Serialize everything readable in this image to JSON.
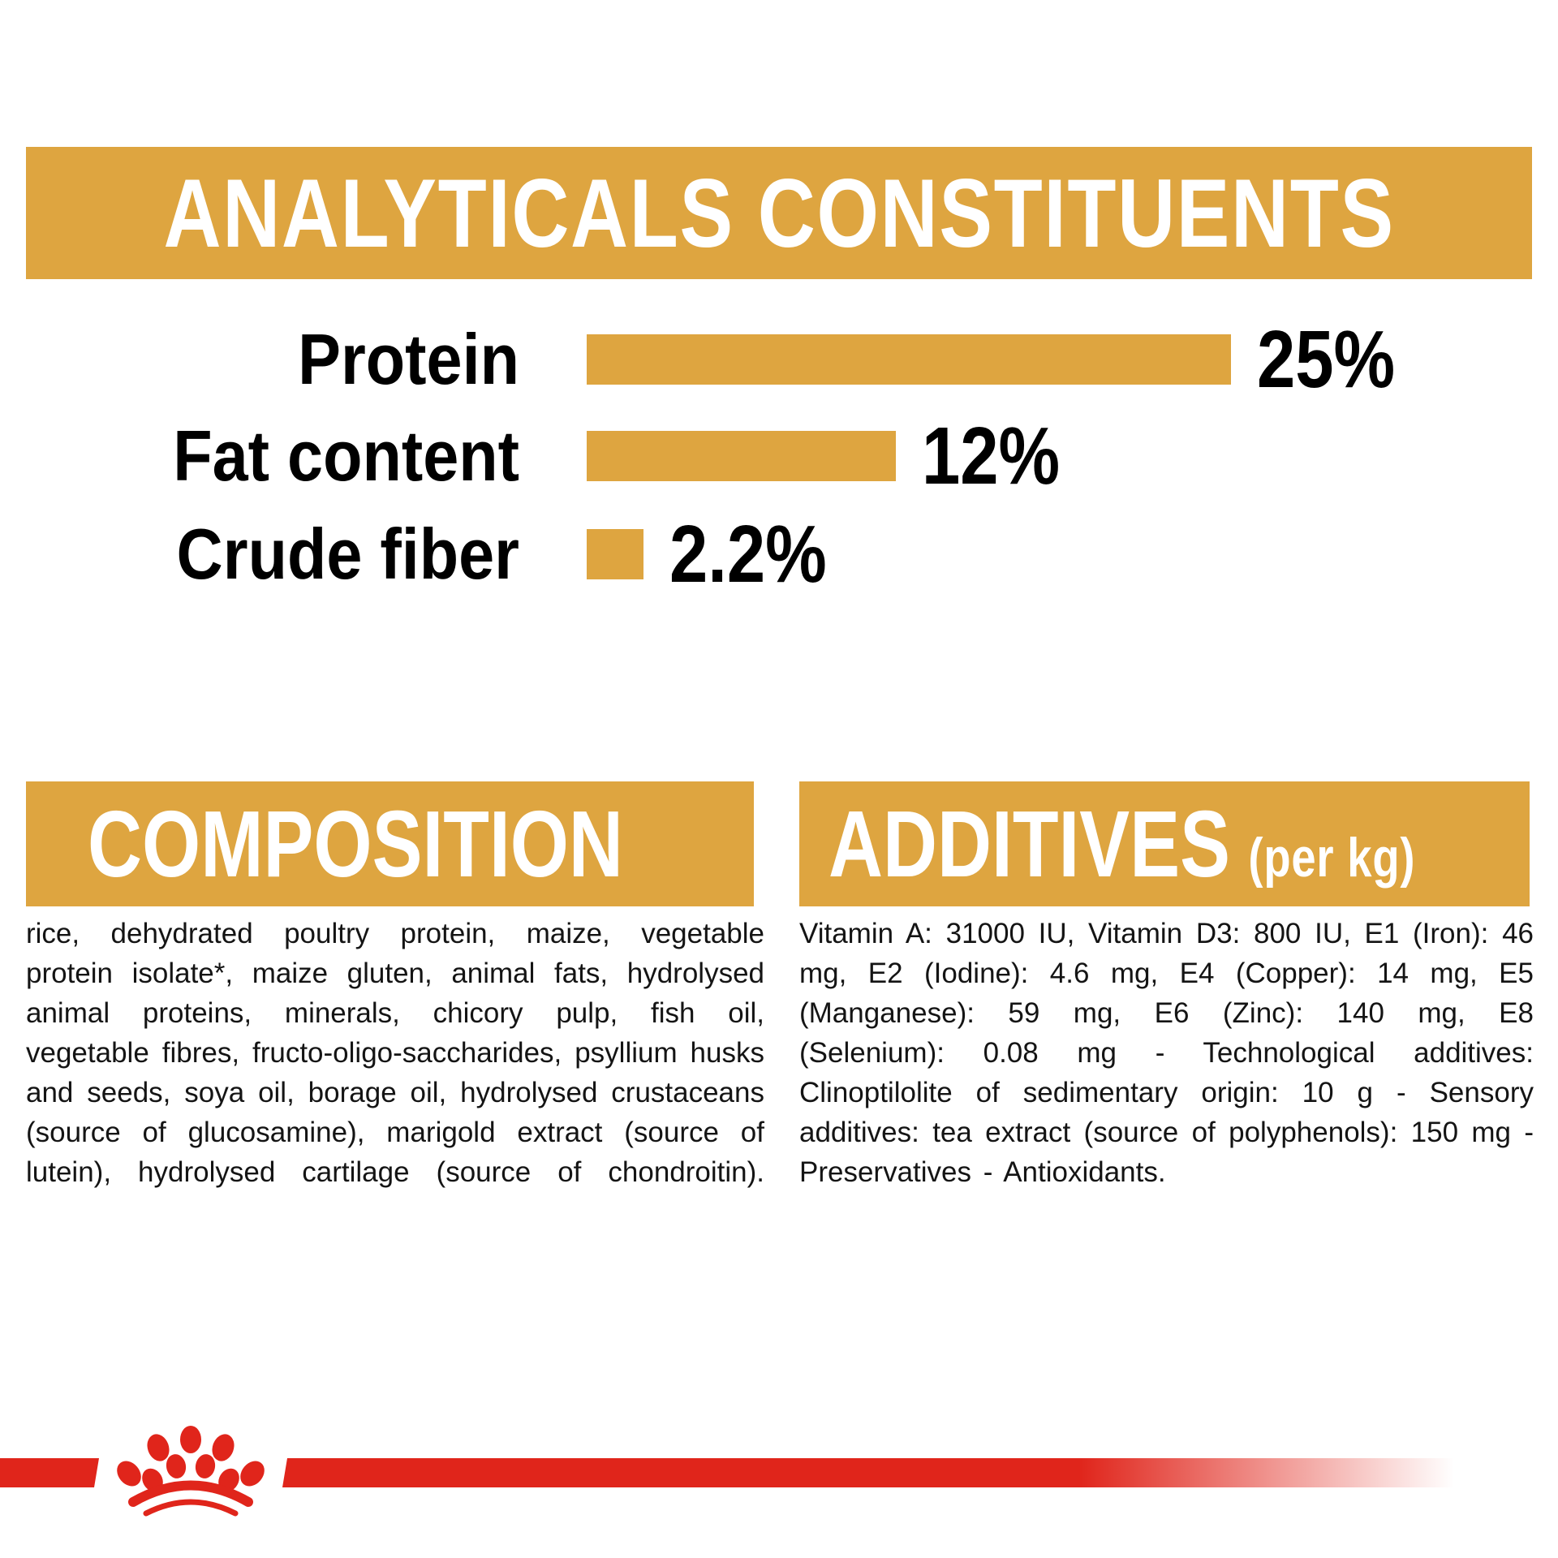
{
  "page": {
    "background": "#ffffff",
    "accent_gold": "#DEA540",
    "brand_red": "#E0251B",
    "text_color": "#141414"
  },
  "analyticals": {
    "title": "ANALYTICALS CONSTITUENTS"
  },
  "chart_data": {
    "type": "bar",
    "orientation": "horizontal",
    "title": "ANALYTICALS CONSTITUENTS",
    "categories": [
      "Protein",
      "Fat content",
      "Crude fiber"
    ],
    "values": [
      25,
      12,
      2.2
    ],
    "value_labels": [
      "25%",
      "12%",
      "2.2%"
    ],
    "unit": "%",
    "xlim": [
      0,
      25
    ],
    "bar_color": "#DEA540",
    "grid": false,
    "legend": false
  },
  "composition": {
    "title": "COMPOSITION",
    "body": "rice, dehydrated poultry protein, maize, vegetable protein isolate*, maize gluten, animal fats, hydrolysed animal proteins, minerals, chicory pulp, fish oil, vegetable fibres, fructo-oligo-saccharides, psyllium husks and seeds, soya oil, borage oil, hydrolysed crustaceans (source of glucosamine), marigold extract (source of lutein), hydrolysed cartilage (source of chondroitin)."
  },
  "additives": {
    "title": "ADDITIVES",
    "title_suffix": "(per kg)",
    "body": "Vitamin A: 31000 IU, Vitamin D3: 800 IU, E1 (Iron): 46 mg, E2 (Iodine): 4.6 mg, E4 (Copper): 14 mg, E5 (Manganese): 59 mg, E6 (Zinc): 140 mg, E8 (Selenium): 0.08 mg - Technological additives: Clinoptilolite of sedimentary origin: 10 g - Sensory additives: tea extract (source of polyphenols): 150 mg - Preservatives - Antioxidants."
  },
  "footer": {
    "logo": "royal-canin-crown"
  }
}
